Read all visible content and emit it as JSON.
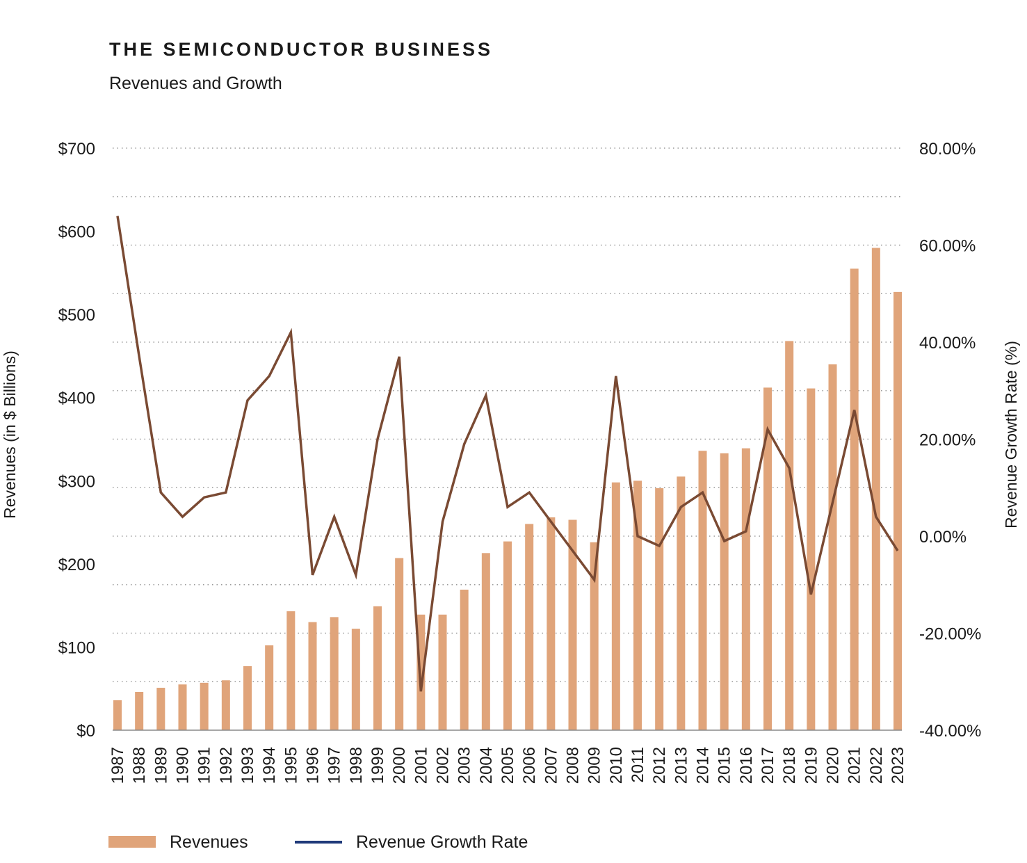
{
  "chart_data": {
    "type": "bar",
    "title": "THE SEMICONDUCTOR BUSINESS",
    "subtitle": "Revenues and Growth",
    "categories": [
      "1987",
      "1988",
      "1989",
      "1990",
      "1991",
      "1992",
      "1993",
      "1994",
      "1995",
      "1996",
      "1997",
      "1998",
      "1999",
      "2000",
      "2001",
      "2002",
      "2003",
      "2004",
      "2005",
      "2006",
      "2007",
      "2008",
      "2009",
      "2010",
      "2011",
      "2012",
      "2013",
      "2014",
      "2015",
      "2016",
      "2017",
      "2018",
      "2019",
      "2020",
      "2021",
      "2022",
      "2023"
    ],
    "series": [
      {
        "name": "Revenues",
        "type": "bar",
        "axis": "left",
        "color": "#e0a47a",
        "values": [
          36,
          46,
          51,
          55,
          57,
          60,
          77,
          102,
          143,
          130,
          136,
          122,
          149,
          207,
          139,
          139,
          169,
          213,
          227,
          248,
          256,
          253,
          226,
          298,
          300,
          291,
          305,
          336,
          333,
          339,
          412,
          468,
          411,
          440,
          555,
          580,
          527
        ]
      },
      {
        "name": "Revenue Growth Rate",
        "type": "line",
        "axis": "right",
        "color": "#7a4a33",
        "values": [
          66,
          37,
          9,
          4,
          8,
          9,
          28,
          33,
          42,
          -8,
          4,
          -8,
          20,
          37,
          -32,
          3,
          19,
          29,
          6,
          9,
          3,
          -3,
          -9,
          33,
          0,
          -2,
          6,
          9,
          -1,
          1,
          22,
          14,
          -12,
          7,
          26,
          4,
          -3
        ]
      }
    ],
    "ylabel": "Revenues (in $ Billions)",
    "y2label": "Revenue Growth Rate (%)",
    "ylim": [
      0,
      700
    ],
    "y2lim": [
      -40,
      80
    ],
    "yticks": [
      "$0",
      "$100",
      "$200",
      "$300",
      "$400",
      "$500",
      "$600",
      "$700"
    ],
    "y2ticks": [
      "-40.00%",
      "-20.00%",
      "0.00%",
      "20.00%",
      "40.00%",
      "60.00%",
      "80.00%"
    ],
    "grid": true,
    "legend_position": "bottom-left",
    "legend": [
      {
        "label": "Revenues",
        "color": "#e0a47a"
      },
      {
        "label": "Revenue Growth Rate",
        "color": "#1f3a7a"
      }
    ]
  }
}
